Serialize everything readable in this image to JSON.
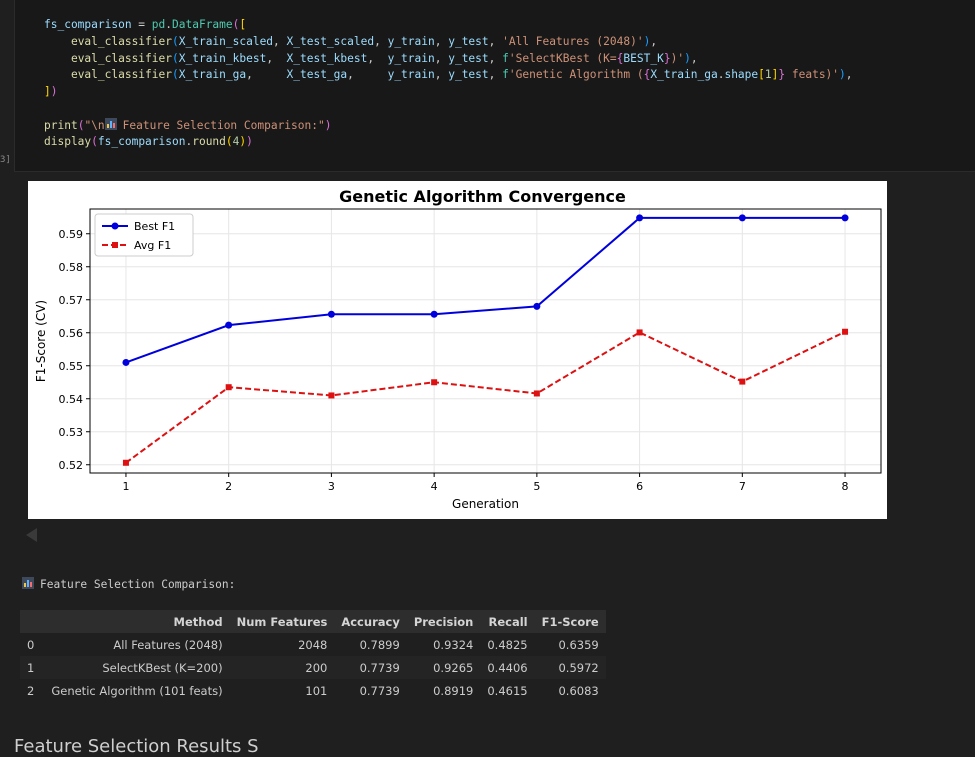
{
  "cell": {
    "execution_count": "3]",
    "code_lines": [
      [
        "fs_comparison = ",
        "pd",
        ".",
        "DataFrame",
        "(["
      ],
      [
        "eval_classifier(X_train_scaled, X_test_scaled, y_train, y_test, 'All Features (2048)'),"
      ],
      [
        "eval_classifier(X_train_kbest,  X_test_kbest,  y_train, y_test, f'SelectKBest (K={BEST_K})'),"
      ],
      [
        "eval_classifier(X_train_ga,     X_test_ga,     y_train, y_test, f'Genetic Algorithm ({X_train_ga.shape[1]} feats)'),"
      ],
      [
        "])"
      ],
      [
        ""
      ],
      [
        "print(\"\\n",
        " Feature Selection Comparison:\")"
      ],
      [
        "display(fs_comparison.round(4))"
      ]
    ]
  },
  "chart_data": {
    "type": "line",
    "title": "Genetic Algorithm Convergence",
    "xlabel": "Generation",
    "ylabel": "F1-Score (CV)",
    "x": [
      1,
      2,
      3,
      4,
      5,
      6,
      7,
      8
    ],
    "xlim": [
      0.65,
      8.35
    ],
    "ylim": [
      0.5175,
      0.5975
    ],
    "yticks": [
      0.52,
      0.53,
      0.54,
      0.55,
      0.56,
      0.57,
      0.58,
      0.59
    ],
    "grid": true,
    "legend": "top-left",
    "series": [
      {
        "name": "Best F1",
        "values": [
          0.551,
          0.5623,
          0.5656,
          0.5656,
          0.568,
          0.5948,
          0.5948,
          0.5948
        ],
        "color": "#0000dd",
        "style": "solid",
        "marker": "circle"
      },
      {
        "name": "Avg F1",
        "values": [
          0.5206,
          0.5435,
          0.541,
          0.545,
          0.5416,
          0.5601,
          0.5452,
          0.5603
        ],
        "color": "#dd1111",
        "style": "dashed",
        "marker": "square"
      }
    ]
  },
  "output": {
    "print_text": "Feature Selection Comparison:"
  },
  "table": {
    "columns": [
      "",
      "Method",
      "Num Features",
      "Accuracy",
      "Precision",
      "Recall",
      "F1-Score"
    ],
    "rows": [
      [
        "0",
        "All Features (2048)",
        "2048",
        "0.7899",
        "0.9324",
        "0.4825",
        "0.6359"
      ],
      [
        "1",
        "SelectKBest (K=200)",
        "200",
        "0.7739",
        "0.9265",
        "0.4406",
        "0.5972"
      ],
      [
        "2",
        "Genetic Algorithm (101 feats)",
        "101",
        "0.7739",
        "0.8919",
        "0.4615",
        "0.6083"
      ]
    ]
  },
  "next_heading": "Feature Selection Results S",
  "colors": {
    "background": "#1f1f1f",
    "code_bg": "#181818",
    "table_header": "#2d2d2d"
  }
}
